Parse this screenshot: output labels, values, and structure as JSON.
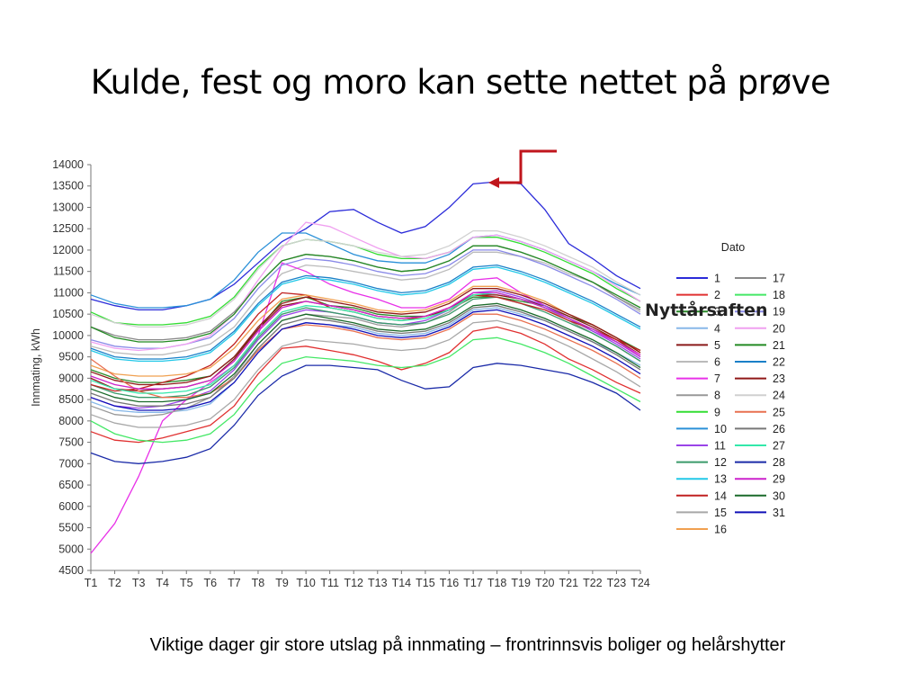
{
  "slide": {
    "title": "Kulde, fest og moro kan sette nettet på prøve",
    "caption": "Viktige dager gir store utslag på innmating – frontrinnsvis boliger og helårshytter",
    "annotation": "Nyttårsaften"
  },
  "chart_data": {
    "type": "line",
    "ylabel": "Innmating, kWh",
    "xlabel": "",
    "ylim": [
      4500,
      14000
    ],
    "yticks": [
      4500,
      5000,
      5500,
      6000,
      6500,
      7000,
      7500,
      8000,
      8500,
      9000,
      9500,
      10000,
      10500,
      11000,
      11500,
      12000,
      12500,
      13000,
      13500,
      14000
    ],
    "x": [
      "T1",
      "T2",
      "T3",
      "T4",
      "T5",
      "T6",
      "T7",
      "T8",
      "T9",
      "T10",
      "T11",
      "T12",
      "T13",
      "T14",
      "T15",
      "T16",
      "T17",
      "T18",
      "T19",
      "T20",
      "T21",
      "T22",
      "T23",
      "T24"
    ],
    "legend_title": "Dato",
    "grid": false,
    "legend_placement": "right",
    "series": [
      {
        "name": "1",
        "color": "#2b2bd9",
        "values": [
          10850,
          10700,
          10600,
          10600,
          10700,
          10850,
          11200,
          11700,
          12200,
          12500,
          12900,
          12950,
          12650,
          12400,
          12550,
          13000,
          13550,
          13600,
          13550,
          12950,
          12150,
          11800,
          11400,
          11100
        ]
      },
      {
        "name": "2",
        "color": "#e03030",
        "values": [
          7750,
          7550,
          7500,
          7600,
          7750,
          7900,
          8350,
          9100,
          9700,
          9750,
          9650,
          9550,
          9400,
          9200,
          9350,
          9600,
          10100,
          10200,
          10050,
          9800,
          9450,
          9200,
          8900,
          8650
        ]
      },
      {
        "name": "3",
        "color": "#2a8a2a",
        "values": [
          9200,
          9000,
          8900,
          8900,
          8950,
          9050,
          9500,
          10150,
          10800,
          10900,
          10700,
          10650,
          10500,
          10450,
          10450,
          10600,
          10900,
          10900,
          10800,
          10700,
          10450,
          10250,
          9950,
          9650
        ]
      },
      {
        "name": "4",
        "color": "#88b8e8",
        "values": [
          8450,
          8250,
          8200,
          8200,
          8250,
          8400,
          8900,
          9600,
          10150,
          10300,
          10250,
          10200,
          10050,
          10000,
          10050,
          10250,
          10600,
          10650,
          10500,
          10350,
          10100,
          9850,
          9600,
          9300
        ]
      },
      {
        "name": "5",
        "color": "#8a1a1a",
        "values": [
          9000,
          8750,
          8700,
          8750,
          8800,
          8950,
          9450,
          10150,
          10700,
          10800,
          10700,
          10600,
          10450,
          10400,
          10450,
          10600,
          10950,
          10950,
          10850,
          10700,
          10450,
          10200,
          9900,
          9550
        ]
      },
      {
        "name": "6",
        "color": "#bbbbbb",
        "values": [
          9750,
          9600,
          9550,
          9550,
          9650,
          9800,
          10200,
          10900,
          11450,
          11650,
          11600,
          11500,
          11400,
          11300,
          11350,
          11550,
          11950,
          11950,
          11850,
          11700,
          11450,
          11250,
          10900,
          10550
        ]
      },
      {
        "name": "7",
        "color": "#e830e8",
        "values": [
          4900,
          5600,
          6700,
          8000,
          8500,
          8900,
          9300,
          10000,
          11700,
          11500,
          11200,
          11000,
          10850,
          10650,
          10650,
          10850,
          11300,
          11350,
          11000,
          10700,
          10400,
          10100,
          9850,
          9550
        ]
      },
      {
        "name": "8",
        "color": "#999999",
        "values": [
          8350,
          8150,
          8100,
          8150,
          8300,
          8550,
          9050,
          9800,
          10350,
          10500,
          10450,
          10400,
          10250,
          10200,
          10300,
          10550,
          10950,
          11000,
          10850,
          10650,
          10350,
          10050,
          9750,
          9400
        ]
      },
      {
        "name": "9",
        "color": "#33dd33",
        "values": [
          10550,
          10300,
          10250,
          10250,
          10300,
          10450,
          10900,
          11600,
          12100,
          12250,
          12200,
          12100,
          11900,
          11800,
          11800,
          11950,
          12300,
          12300,
          12150,
          11950,
          11700,
          11450,
          11100,
          10800
        ]
      },
      {
        "name": "10",
        "color": "#2a90d8",
        "values": [
          10950,
          10750,
          10650,
          10650,
          10700,
          10850,
          11300,
          11950,
          12400,
          12400,
          12150,
          11900,
          11750,
          11700,
          11700,
          11900,
          12300,
          12350,
          12200,
          12000,
          11750,
          11500,
          11200,
          10950
        ]
      },
      {
        "name": "11",
        "color": "#9a44e8",
        "values": [
          8550,
          8350,
          8300,
          8350,
          8500,
          8700,
          9200,
          9900,
          10450,
          10600,
          10550,
          10450,
          10300,
          10250,
          10350,
          10600,
          11000,
          11050,
          10900,
          10700,
          10400,
          10100,
          9800,
          9450
        ]
      },
      {
        "name": "12",
        "color": "#3a9a6a",
        "values": [
          8850,
          8650,
          8550,
          8550,
          8600,
          8800,
          9250,
          9950,
          10500,
          10650,
          10550,
          10450,
          10300,
          10250,
          10300,
          10500,
          10850,
          10900,
          10750,
          10550,
          10300,
          10050,
          9750,
          9400
        ]
      },
      {
        "name": "13",
        "color": "#22c8e8",
        "values": [
          9650,
          9450,
          9400,
          9400,
          9450,
          9600,
          10050,
          10700,
          11200,
          11350,
          11300,
          11200,
          11050,
          10950,
          11000,
          11200,
          11550,
          11600,
          11450,
          11250,
          11000,
          10750,
          10450,
          10150
        ]
      },
      {
        "name": "14",
        "color": "#c02020",
        "values": [
          8850,
          8700,
          8750,
          8900,
          9050,
          9300,
          9800,
          10500,
          11000,
          10950,
          10650,
          10550,
          10400,
          10350,
          10450,
          10650,
          10950,
          10900,
          10750,
          10600,
          10350,
          10150,
          9900,
          9650
        ]
      },
      {
        "name": "15",
        "color": "#a8a8a8",
        "values": [
          8150,
          7950,
          7850,
          7850,
          7900,
          8050,
          8500,
          9200,
          9750,
          9900,
          9850,
          9800,
          9700,
          9650,
          9700,
          9900,
          10300,
          10350,
          10200,
          10000,
          9750,
          9450,
          9150,
          8800
        ]
      },
      {
        "name": "16",
        "color": "#f0a050",
        "values": [
          9300,
          9100,
          9050,
          9050,
          9100,
          9250,
          9700,
          10350,
          10850,
          10950,
          10850,
          10750,
          10600,
          10550,
          10600,
          10800,
          11150,
          11150,
          11000,
          10800,
          10500,
          10250,
          9950,
          9600
        ]
      },
      {
        "name": "17",
        "color": "#888888",
        "values": [
          10200,
          10000,
          9900,
          9900,
          9950,
          10100,
          10550,
          11200,
          11750,
          11900,
          11850,
          11750,
          11600,
          11500,
          11550,
          11750,
          12100,
          12100,
          11950,
          11750,
          11500,
          11250,
          10900,
          10600
        ]
      },
      {
        "name": "18",
        "color": "#44e866",
        "values": [
          8000,
          7700,
          7550,
          7500,
          7550,
          7700,
          8150,
          8850,
          9350,
          9500,
          9450,
          9400,
          9300,
          9250,
          9300,
          9500,
          9900,
          9950,
          9800,
          9600,
          9350,
          9050,
          8750,
          8450
        ]
      },
      {
        "name": "19",
        "color": "#8a8ae8",
        "values": [
          9900,
          9750,
          9700,
          9700,
          9800,
          9950,
          10400,
          11100,
          11650,
          11800,
          11750,
          11650,
          11500,
          11400,
          11450,
          11650,
          12000,
          12000,
          11850,
          11650,
          11400,
          11150,
          10850,
          10500
        ]
      },
      {
        "name": "20",
        "color": "#f0a0f0",
        "values": [
          9850,
          9700,
          9650,
          9700,
          9800,
          10000,
          10500,
          11300,
          12050,
          12650,
          12550,
          12300,
          12050,
          11850,
          11800,
          11950,
          12300,
          12350,
          12200,
          12000,
          11750,
          11500,
          11150,
          10800
        ]
      },
      {
        "name": "21",
        "color": "#238a23",
        "values": [
          10200,
          9950,
          9850,
          9850,
          9900,
          10050,
          10500,
          11200,
          11750,
          11900,
          11850,
          11750,
          11600,
          11500,
          11550,
          11750,
          12100,
          12100,
          11950,
          11750,
          11500,
          11250,
          10950,
          10650
        ]
      },
      {
        "name": "22",
        "color": "#1a80c8",
        "values": [
          9700,
          9500,
          9450,
          9450,
          9500,
          9650,
          10100,
          10750,
          11250,
          11400,
          11350,
          11250,
          11100,
          11000,
          11050,
          11250,
          11600,
          11650,
          11500,
          11300,
          11050,
          10800,
          10500,
          10200
        ]
      },
      {
        "name": "23",
        "color": "#901818",
        "values": [
          9150,
          8950,
          8850,
          8850,
          8900,
          9050,
          9500,
          10200,
          10750,
          10900,
          10800,
          10700,
          10550,
          10500,
          10550,
          10750,
          11100,
          11100,
          10950,
          10750,
          10500,
          10250,
          9950,
          9600
        ]
      },
      {
        "name": "24",
        "color": "#d0d0d0",
        "values": [
          10500,
          10300,
          10200,
          10200,
          10250,
          10400,
          10850,
          11550,
          12100,
          12250,
          12200,
          12100,
          11950,
          11850,
          11900,
          12100,
          12450,
          12450,
          12300,
          12100,
          11850,
          11600,
          11250,
          10950
        ]
      },
      {
        "name": "25",
        "color": "#e87050",
        "values": [
          9450,
          9050,
          8700,
          8550,
          8550,
          8650,
          9000,
          9650,
          10150,
          10250,
          10200,
          10100,
          9950,
          9900,
          9950,
          10150,
          10500,
          10500,
          10350,
          10150,
          9900,
          9650,
          9350,
          9000
        ]
      },
      {
        "name": "26",
        "color": "#777777",
        "values": [
          8650,
          8450,
          8350,
          8350,
          8400,
          8550,
          9000,
          9700,
          10250,
          10400,
          10350,
          10250,
          10100,
          10050,
          10100,
          10300,
          10650,
          10700,
          10550,
          10350,
          10100,
          9850,
          9550,
          9200
        ]
      },
      {
        "name": "27",
        "color": "#33e8aa",
        "values": [
          8950,
          8750,
          8650,
          8650,
          8700,
          8850,
          9300,
          10000,
          10550,
          10700,
          10650,
          10550,
          10400,
          10350,
          10400,
          10600,
          10950,
          11000,
          10850,
          10650,
          10400,
          10150,
          9850,
          9500
        ]
      },
      {
        "name": "28",
        "color": "#1a2aa8",
        "values": [
          7250,
          7050,
          7000,
          7050,
          7150,
          7350,
          7900,
          8600,
          9050,
          9300,
          9300,
          9250,
          9200,
          8950,
          8750,
          8800,
          9250,
          9350,
          9300,
          9200,
          9100,
          8900,
          8650,
          8250
        ]
      },
      {
        "name": "29",
        "color": "#cc22cc",
        "values": [
          9050,
          8850,
          8750,
          8750,
          8800,
          8950,
          9400,
          10100,
          10650,
          10800,
          10700,
          10600,
          10450,
          10400,
          10450,
          10650,
          11000,
          11000,
          10850,
          10650,
          10400,
          10150,
          9850,
          9500
        ]
      },
      {
        "name": "30",
        "color": "#1a6a2a",
        "values": [
          8750,
          8550,
          8450,
          8450,
          8500,
          8650,
          9100,
          9800,
          10350,
          10500,
          10400,
          10300,
          10150,
          10100,
          10150,
          10350,
          10700,
          10750,
          10600,
          10400,
          10150,
          9900,
          9600,
          9250
        ]
      },
      {
        "name": "31",
        "color": "#1010b8",
        "values": [
          8550,
          8350,
          8250,
          8250,
          8300,
          8450,
          8900,
          9600,
          10150,
          10300,
          10250,
          10150,
          10000,
          9950,
          10000,
          10200,
          10550,
          10600,
          10450,
          10250,
          10000,
          9750,
          9450,
          9100
        ]
      }
    ]
  }
}
